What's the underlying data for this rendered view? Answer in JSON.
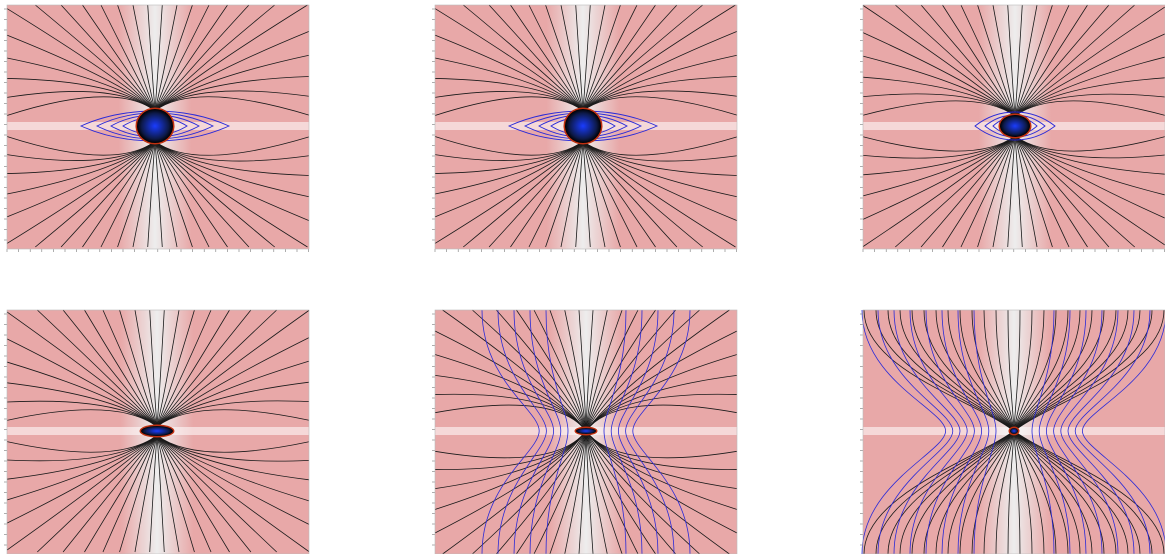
{
  "figure": {
    "rows": 2,
    "cols": 3,
    "panels": [
      {
        "id": "p1",
        "kind": "field-lines",
        "phase": "spheroid-large"
      },
      {
        "id": "p2",
        "kind": "field-lines",
        "phase": "spheroid-large"
      },
      {
        "id": "p3",
        "kind": "field-lines",
        "phase": "spheroid-medium"
      },
      {
        "id": "p4",
        "kind": "field-lines",
        "phase": "flattened-disk"
      },
      {
        "id": "p5",
        "kind": "field-lines",
        "phase": "pinched"
      },
      {
        "id": "p6",
        "kind": "field-lines",
        "phase": "hourglass"
      }
    ],
    "colors": {
      "background_high": "#e8a8a8",
      "background_low": "#ededed",
      "poloidal_lines": "#1a1a1a",
      "contour_lines": "#2a2ad8",
      "core_dark": "#0d1a4a",
      "core_bright": "#1a3cff",
      "core_rim": "#c03010",
      "axis_ticks": "#777777"
    }
  }
}
